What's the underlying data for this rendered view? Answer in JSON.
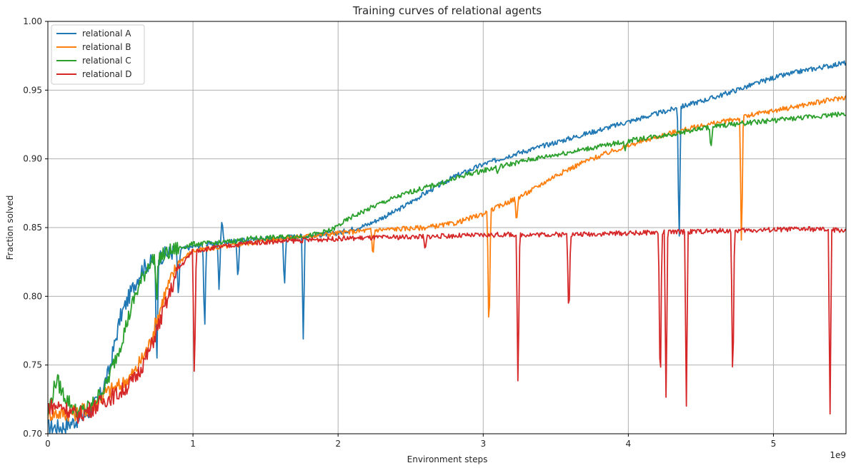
{
  "chart_data": {
    "type": "line",
    "title": "Training curves of relational agents",
    "xlabel": "Environment steps",
    "ylabel": "Fraction solved",
    "x_offset_text": "1e9",
    "xlim": [
      0,
      5.5
    ],
    "ylim": [
      0.7,
      1.0
    ],
    "x_ticks": [
      0,
      1,
      2,
      3,
      4,
      5
    ],
    "y_ticks": [
      0.7,
      0.75,
      0.8,
      0.85,
      0.9,
      0.95,
      1.0
    ],
    "x_tick_labels": [
      "0",
      "1",
      "2",
      "3",
      "4",
      "5"
    ],
    "y_tick_labels": [
      "0.70",
      "0.75",
      "0.80",
      "0.85",
      "0.90",
      "0.95",
      "1.00"
    ],
    "grid": true,
    "legend_position": "top-left",
    "series": [
      {
        "name": "relational A",
        "color": "#1f77b4",
        "x": [
          0,
          0.1,
          0.2,
          0.28,
          0.35,
          0.42,
          0.5,
          0.58,
          0.65,
          0.75,
          0.85,
          0.95,
          1.05,
          1.2,
          1.4,
          1.6,
          1.8,
          2.0,
          2.2,
          2.4,
          2.6,
          2.8,
          3.0,
          3.2,
          3.4,
          3.6,
          3.8,
          4.0,
          4.2,
          4.4,
          4.6,
          4.8,
          5.0,
          5.2,
          5.5
        ],
        "y": [
          0.705,
          0.705,
          0.71,
          0.715,
          0.725,
          0.745,
          0.785,
          0.805,
          0.82,
          0.828,
          0.832,
          0.835,
          0.837,
          0.839,
          0.841,
          0.843,
          0.844,
          0.846,
          0.852,
          0.862,
          0.875,
          0.887,
          0.896,
          0.903,
          0.909,
          0.915,
          0.921,
          0.927,
          0.933,
          0.939,
          0.945,
          0.952,
          0.959,
          0.964,
          0.97
        ],
        "dips": [
          [
            0.75,
            0.742
          ],
          [
            0.9,
            0.792
          ],
          [
            1.08,
            0.772
          ],
          [
            1.18,
            0.804
          ],
          [
            1.2,
            0.858
          ],
          [
            1.31,
            0.811
          ],
          [
            1.63,
            0.805
          ],
          [
            1.76,
            0.769
          ],
          [
            4.35,
            0.835
          ]
        ]
      },
      {
        "name": "relational B",
        "color": "#ff7f0e",
        "x": [
          0,
          0.1,
          0.2,
          0.3,
          0.4,
          0.5,
          0.6,
          0.7,
          0.8,
          0.9,
          1.0,
          1.2,
          1.4,
          1.6,
          1.8,
          2.0,
          2.2,
          2.4,
          2.6,
          2.8,
          3.0,
          3.1,
          3.3,
          3.5,
          3.7,
          3.9,
          4.1,
          4.3,
          4.5,
          4.7,
          4.9,
          5.1,
          5.3,
          5.5
        ],
        "y": [
          0.715,
          0.715,
          0.715,
          0.72,
          0.73,
          0.735,
          0.745,
          0.765,
          0.8,
          0.825,
          0.833,
          0.836,
          0.839,
          0.842,
          0.844,
          0.846,
          0.848,
          0.849,
          0.85,
          0.853,
          0.86,
          0.865,
          0.875,
          0.888,
          0.898,
          0.906,
          0.913,
          0.919,
          0.924,
          0.928,
          0.933,
          0.937,
          0.941,
          0.945
        ],
        "dips": [
          [
            2.24,
            0.827
          ],
          [
            3.04,
            0.764
          ],
          [
            3.23,
            0.852
          ],
          [
            4.78,
            0.832
          ]
        ]
      },
      {
        "name": "relational C",
        "color": "#2ca02c",
        "x": [
          0,
          0.06,
          0.1,
          0.2,
          0.3,
          0.4,
          0.5,
          0.6,
          0.7,
          0.8,
          0.9,
          1.0,
          1.2,
          1.4,
          1.6,
          1.8,
          1.95,
          2.1,
          2.3,
          2.5,
          2.7,
          2.9,
          3.1,
          3.3,
          3.5,
          3.7,
          3.9,
          4.1,
          4.3,
          4.5,
          4.7,
          4.9,
          5.1,
          5.3,
          5.5
        ],
        "y": [
          0.715,
          0.74,
          0.73,
          0.715,
          0.72,
          0.735,
          0.765,
          0.8,
          0.825,
          0.83,
          0.835,
          0.838,
          0.839,
          0.842,
          0.843,
          0.844,
          0.848,
          0.858,
          0.868,
          0.876,
          0.882,
          0.889,
          0.894,
          0.899,
          0.903,
          0.907,
          0.911,
          0.915,
          0.918,
          0.922,
          0.925,
          0.927,
          0.929,
          0.931,
          0.933
        ],
        "dips": [
          [
            0.75,
            0.794
          ],
          [
            3.1,
            0.889
          ],
          [
            3.98,
            0.906
          ],
          [
            4.57,
            0.907
          ]
        ]
      },
      {
        "name": "relational D",
        "color": "#d62728",
        "x": [
          0,
          0.1,
          0.2,
          0.3,
          0.4,
          0.5,
          0.6,
          0.7,
          0.8,
          0.9,
          1.0,
          1.2,
          1.4,
          1.6,
          1.8,
          2.0,
          2.4,
          2.8,
          3.2,
          3.6,
          4.0,
          4.4,
          4.8,
          5.2,
          5.5
        ],
        "y": [
          0.72,
          0.72,
          0.713,
          0.718,
          0.725,
          0.73,
          0.74,
          0.76,
          0.79,
          0.82,
          0.833,
          0.836,
          0.839,
          0.84,
          0.841,
          0.842,
          0.843,
          0.844,
          0.845,
          0.845,
          0.846,
          0.847,
          0.848,
          0.849,
          0.848
        ],
        "dips": [
          [
            1.01,
            0.731
          ],
          [
            2.6,
            0.832
          ],
          [
            3.24,
            0.726
          ],
          [
            3.59,
            0.781
          ],
          [
            4.22,
            0.72
          ],
          [
            4.26,
            0.72
          ],
          [
            4.4,
            0.72
          ],
          [
            4.72,
            0.726
          ],
          [
            5.39,
            0.714
          ]
        ]
      }
    ]
  }
}
